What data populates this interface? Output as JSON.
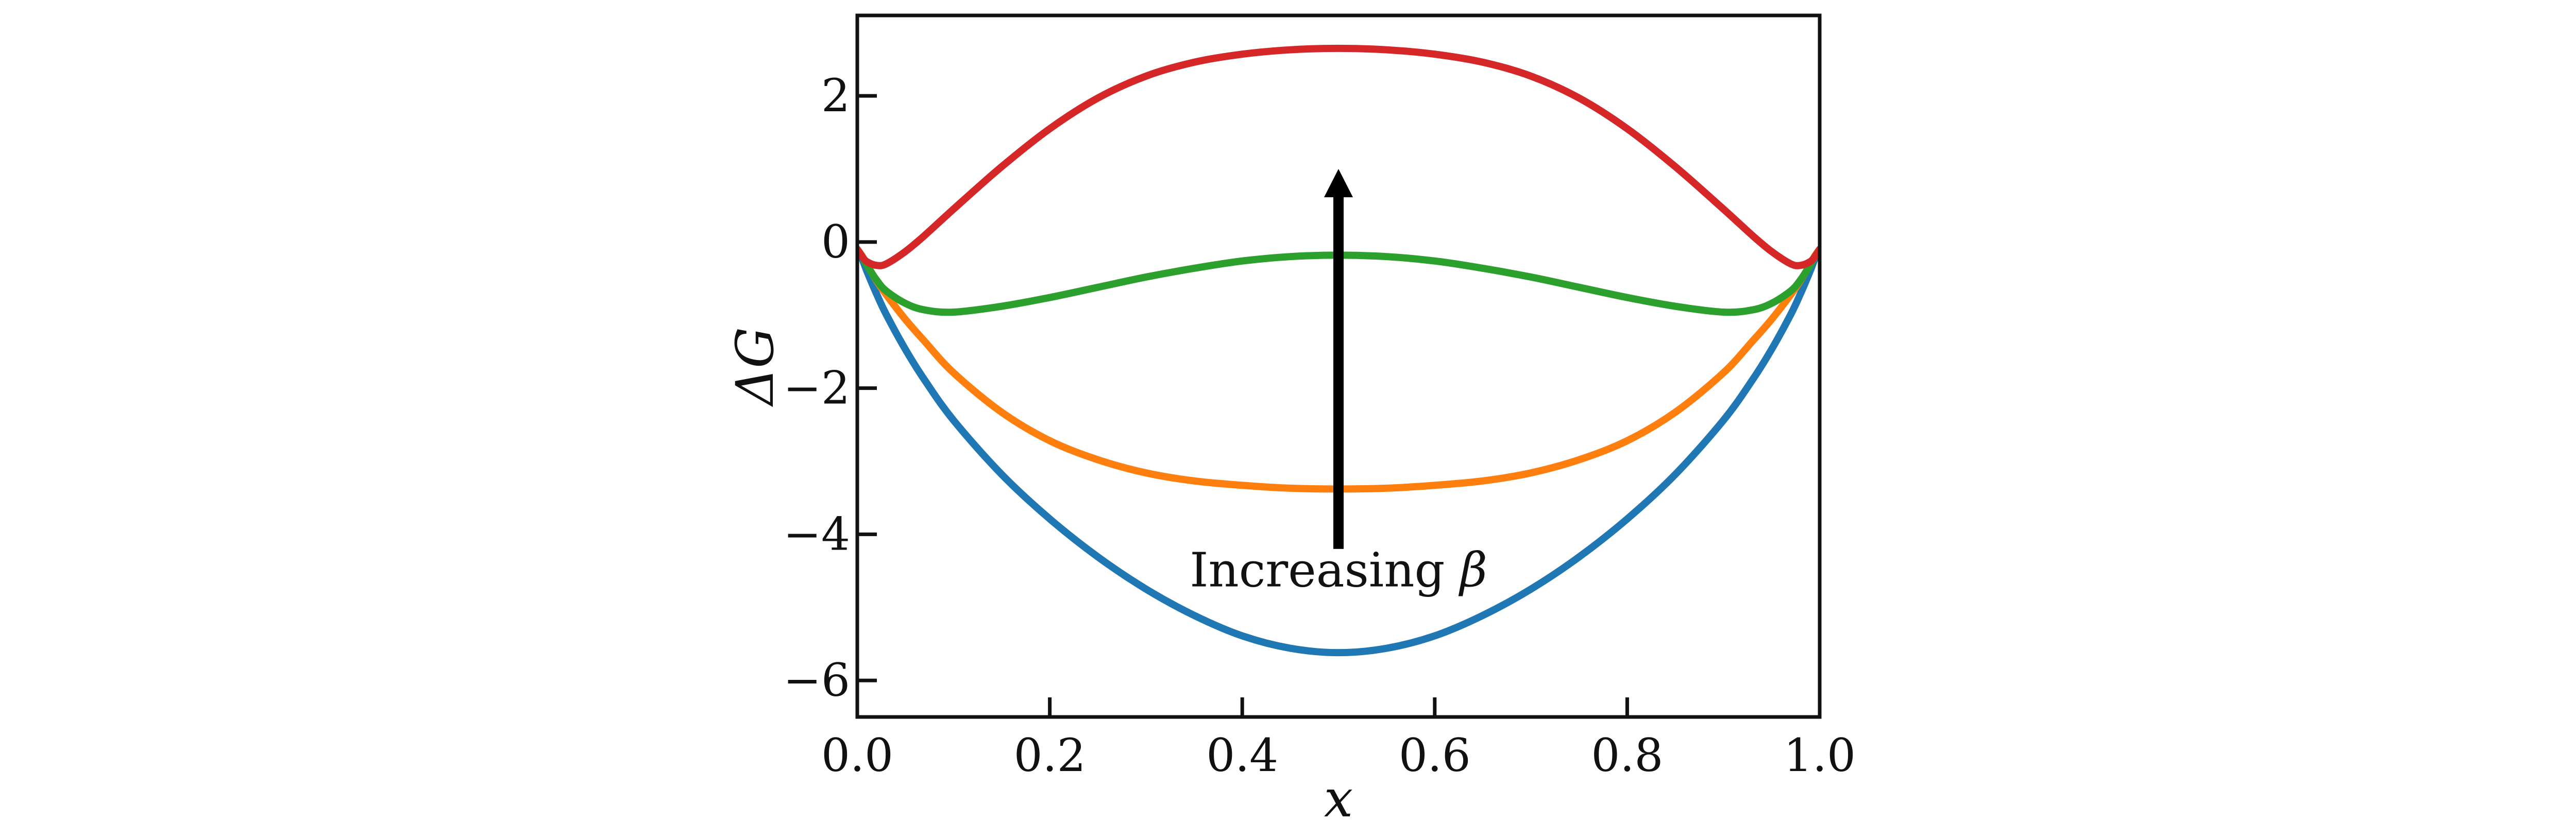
{
  "chart_data": {
    "type": "line",
    "title": "",
    "xlabel": "x",
    "ylabel": "ΔG",
    "xlim": [
      0.0,
      1.0
    ],
    "ylim": [
      -6.5,
      3.1
    ],
    "grid": false,
    "x_ticks": [
      0.0,
      0.2,
      0.4,
      0.6,
      0.8,
      1.0
    ],
    "x_tick_labels": [
      "0.0",
      "0.2",
      "0.4",
      "0.6",
      "0.8",
      "1.0"
    ],
    "y_ticks": [
      2,
      0,
      -2,
      -4,
      -6
    ],
    "y_tick_labels": [
      "2",
      "0",
      "−2",
      "−4",
      "−6"
    ],
    "x": [
      0.0,
      0.005,
      0.01,
      0.02,
      0.03,
      0.05,
      0.07,
      0.1,
      0.15,
      0.2,
      0.25,
      0.3,
      0.35,
      0.4,
      0.45,
      0.5,
      0.55,
      0.6,
      0.65,
      0.7,
      0.75,
      0.8,
      0.85,
      0.9,
      0.93,
      0.95,
      0.97,
      0.98,
      0.99,
      0.995,
      1.0
    ],
    "series": [
      {
        "color": "#1f77b4",
        "values": [
          -0.1,
          -0.23,
          -0.4,
          -0.71,
          -0.99,
          -1.47,
          -1.89,
          -2.44,
          -3.18,
          -3.79,
          -4.31,
          -4.75,
          -5.11,
          -5.39,
          -5.56,
          -5.62,
          -5.56,
          -5.39,
          -5.11,
          -4.75,
          -4.31,
          -3.79,
          -3.18,
          -2.44,
          -1.89,
          -1.47,
          -0.99,
          -0.71,
          -0.4,
          -0.23,
          -0.1
        ]
      },
      {
        "color": "#ff7f0e",
        "values": [
          -0.1,
          -0.19,
          -0.31,
          -0.53,
          -0.72,
          -1.06,
          -1.36,
          -1.79,
          -2.33,
          -2.72,
          -2.98,
          -3.16,
          -3.27,
          -3.33,
          -3.37,
          -3.38,
          -3.37,
          -3.33,
          -3.27,
          -3.16,
          -2.98,
          -2.72,
          -2.33,
          -1.79,
          -1.36,
          -1.06,
          -0.72,
          -0.53,
          -0.31,
          -0.19,
          -0.1
        ]
      },
      {
        "color": "#2ca02c",
        "values": [
          -0.1,
          -0.2,
          -0.32,
          -0.52,
          -0.67,
          -0.84,
          -0.93,
          -0.96,
          -0.88,
          -0.76,
          -0.62,
          -0.48,
          -0.36,
          -0.26,
          -0.2,
          -0.18,
          -0.2,
          -0.26,
          -0.36,
          -0.48,
          -0.62,
          -0.76,
          -0.88,
          -0.96,
          -0.93,
          -0.84,
          -0.67,
          -0.52,
          -0.32,
          -0.2,
          -0.1
        ]
      },
      {
        "color": "#d62728",
        "values": [
          -0.1,
          -0.2,
          -0.27,
          -0.32,
          -0.3,
          -0.13,
          0.09,
          0.45,
          1.03,
          1.55,
          1.97,
          2.27,
          2.46,
          2.57,
          2.63,
          2.65,
          2.63,
          2.57,
          2.46,
          2.27,
          1.97,
          1.55,
          1.03,
          0.45,
          0.09,
          -0.13,
          -0.3,
          -0.32,
          -0.27,
          -0.2,
          -0.1
        ]
      }
    ],
    "annotations": [
      {
        "text": "Increasing ",
        "symbol": "β",
        "arrow_from": {
          "x": 0.5,
          "y": -4.2
        },
        "arrow_to": {
          "x": 0.5,
          "y": 1.0
        },
        "text_position": {
          "x": 0.5,
          "y": -4.6
        }
      }
    ]
  }
}
